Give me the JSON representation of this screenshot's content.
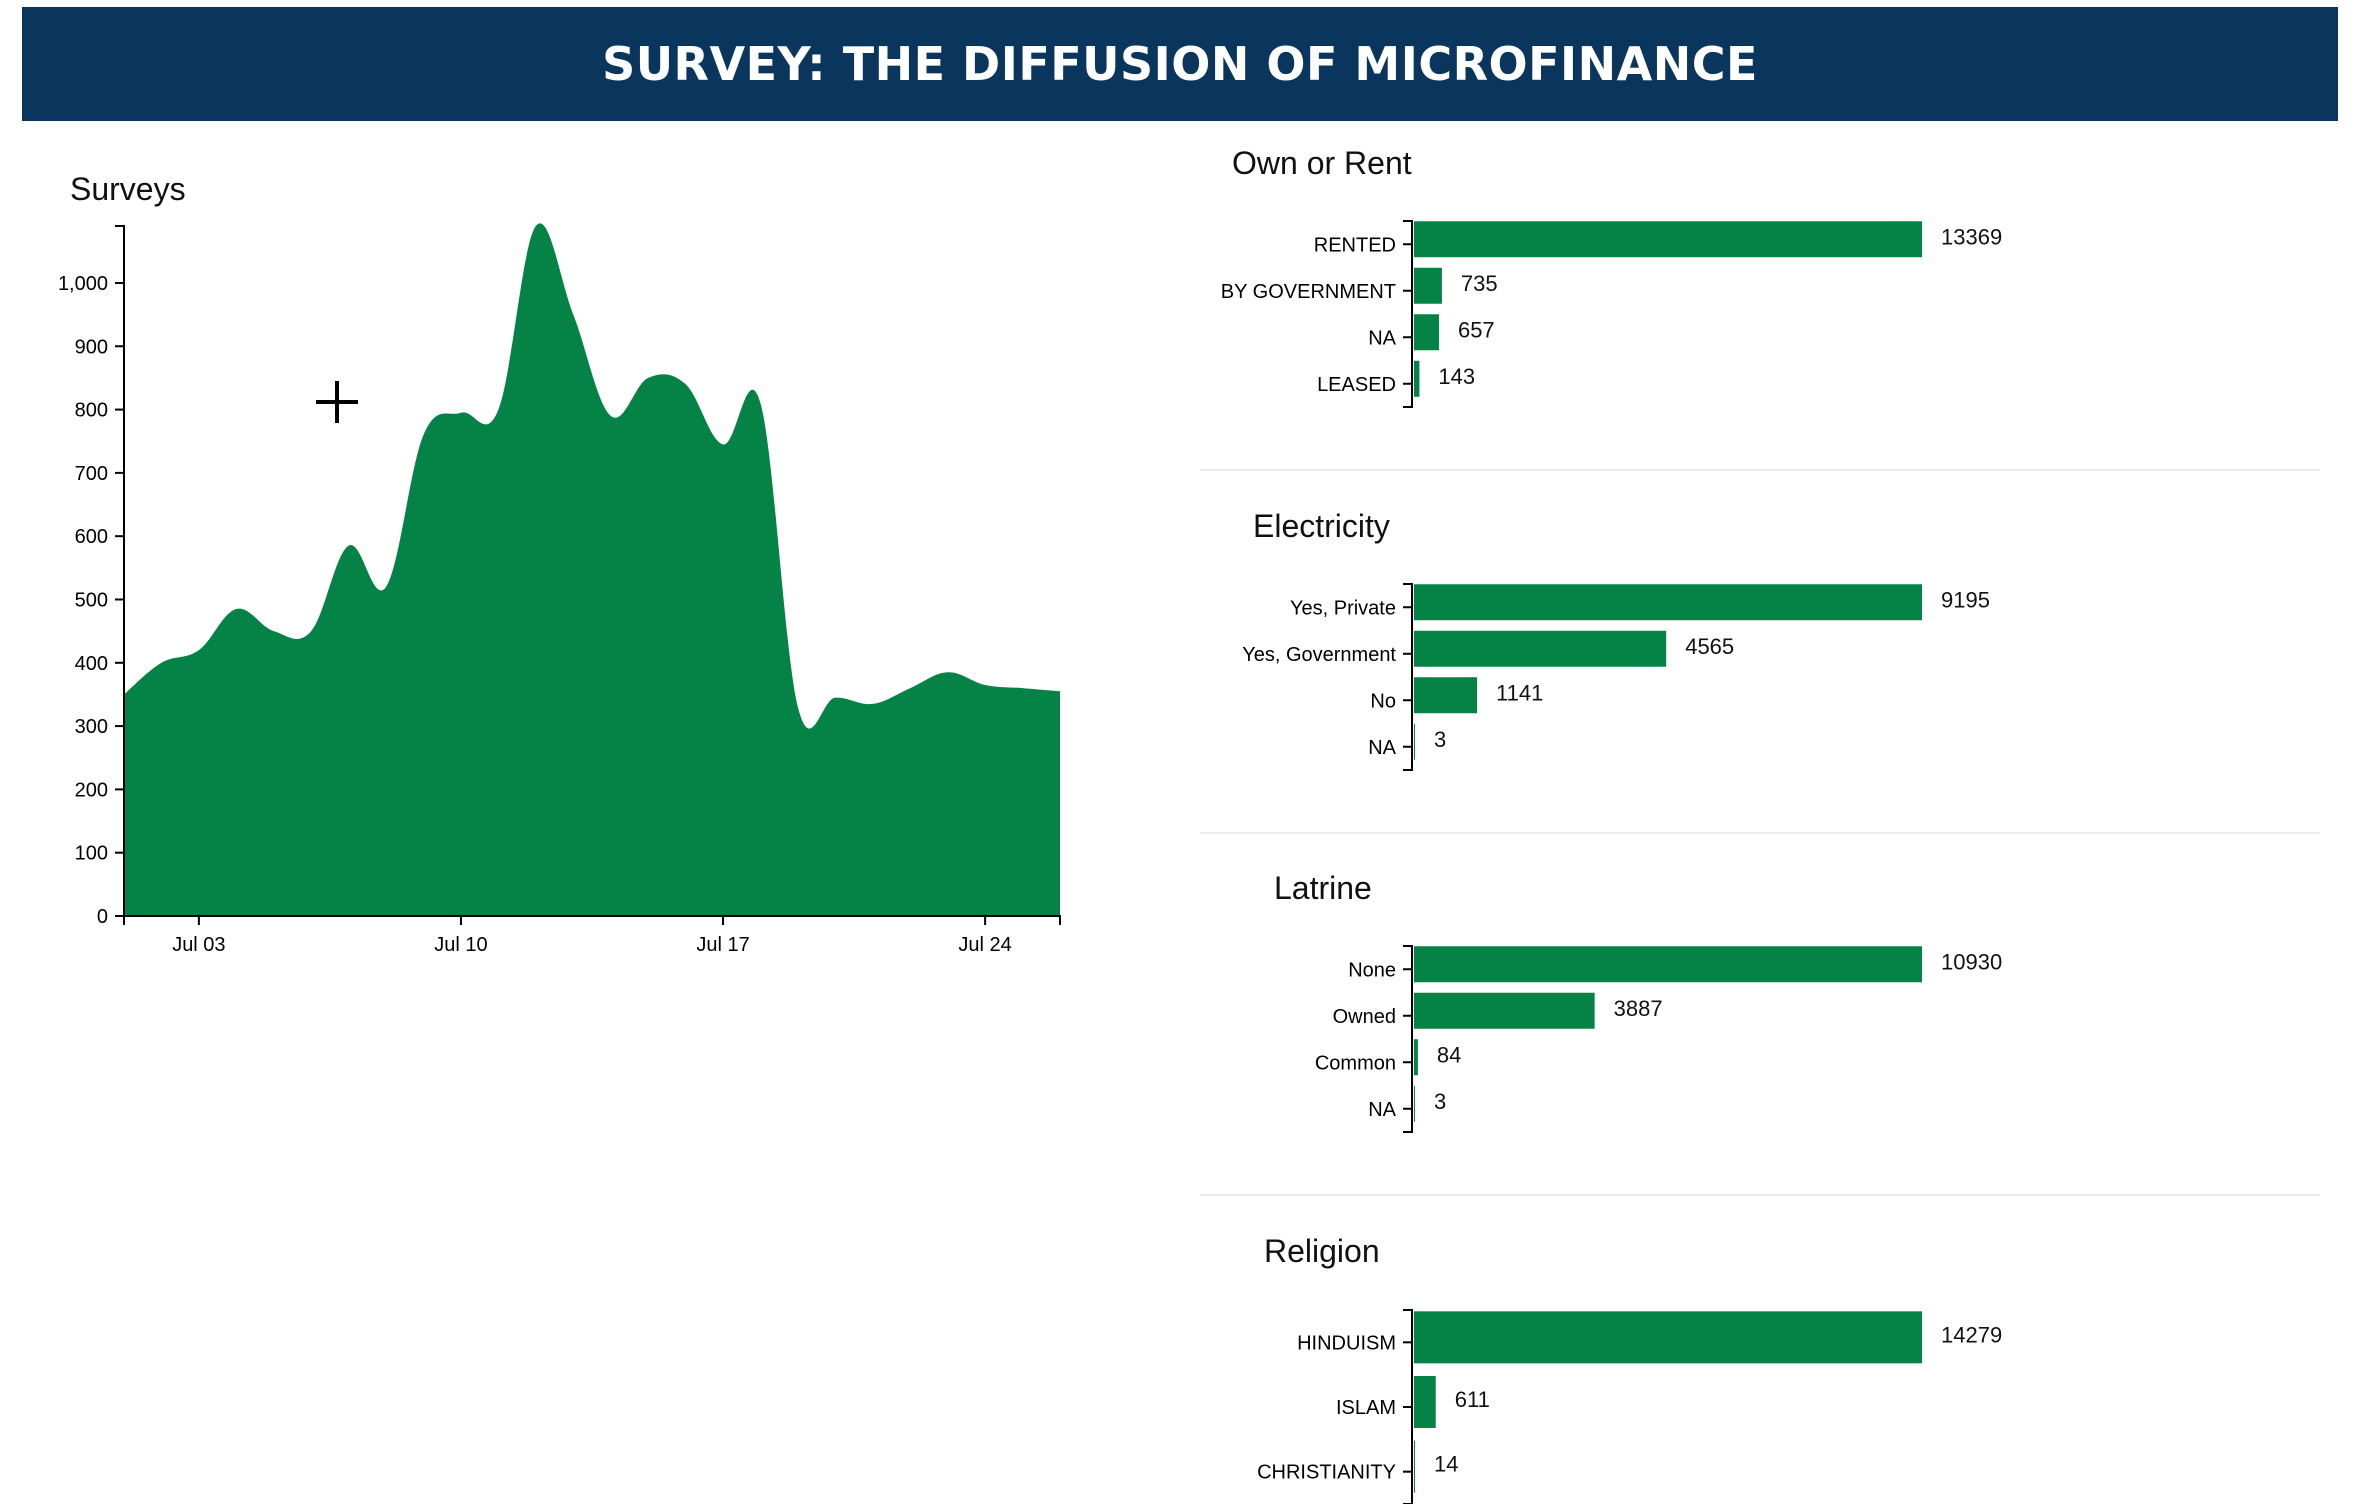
{
  "header": {
    "title": "SURVEY: THE DIFFUSION OF MICROFINANCE"
  },
  "colors": {
    "bar": "#058346",
    "header_bg": "#0a365e",
    "axis": "#000000"
  },
  "chart_data": [
    {
      "type": "area",
      "title": "Surveys",
      "xlabel": "",
      "ylabel": "",
      "x_ticks": [
        "Jul 03",
        "Jul 10",
        "Jul 17",
        "Jul 24"
      ],
      "y_ticks": [
        "0",
        "100",
        "200",
        "300",
        "400",
        "500",
        "600",
        "700",
        "800",
        "900",
        "1,000"
      ],
      "ylim": [
        0,
        1090
      ],
      "xlim": [
        "2019-07-01",
        "2019-07-26"
      ],
      "x": [
        "2019-07-01",
        "2019-07-02",
        "2019-07-03",
        "2019-07-04",
        "2019-07-05",
        "2019-07-06",
        "2019-07-07",
        "2019-07-08",
        "2019-07-09",
        "2019-07-10",
        "2019-07-11",
        "2019-07-12",
        "2019-07-13",
        "2019-07-14",
        "2019-07-15",
        "2019-07-16",
        "2019-07-17",
        "2019-07-18",
        "2019-07-19",
        "2019-07-20",
        "2019-07-21",
        "2019-07-22",
        "2019-07-23",
        "2019-07-24",
        "2019-07-25",
        "2019-07-26"
      ],
      "values": [
        350,
        400,
        420,
        485,
        450,
        450,
        585,
        520,
        760,
        795,
        800,
        1090,
        950,
        790,
        850,
        840,
        745,
        810,
        330,
        345,
        335,
        360,
        385,
        365,
        360,
        355
      ],
      "grid": false,
      "legend": "none"
    },
    {
      "type": "bar",
      "title": "Own or Rent",
      "categories": [
        "RENTED",
        "BY GOVERNMENT",
        "NA",
        "LEASED"
      ],
      "values": [
        13369,
        735,
        657,
        143
      ],
      "value_labels": [
        "13369",
        "735",
        "657",
        "143"
      ]
    },
    {
      "type": "bar",
      "title": "Electricity",
      "categories": [
        "Yes, Private",
        "Yes, Government",
        "No",
        "NA"
      ],
      "values": [
        9195,
        4565,
        1141,
        3
      ],
      "value_labels": [
        "9195",
        "4565",
        "1141",
        "3"
      ]
    },
    {
      "type": "bar",
      "title": "Latrine",
      "categories": [
        "None",
        "Owned",
        "Common",
        "NA"
      ],
      "values": [
        10930,
        3887,
        84,
        3
      ],
      "value_labels": [
        "10930",
        "3887",
        "84",
        "3"
      ]
    },
    {
      "type": "bar",
      "title": "Religion",
      "categories": [
        "HINDUISM",
        "ISLAM",
        "CHRISTIANITY"
      ],
      "values": [
        14279,
        611,
        14
      ],
      "value_labels": [
        "14279",
        "611",
        "14"
      ]
    }
  ]
}
